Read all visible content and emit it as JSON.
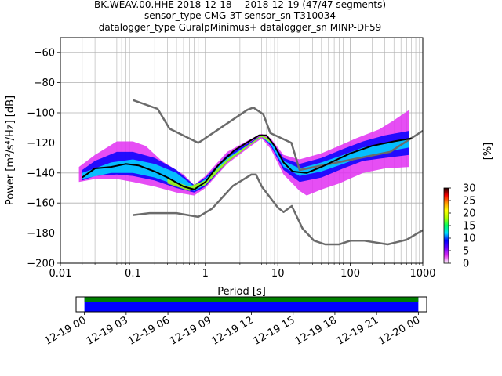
{
  "chart_data": [
    {
      "type": "heatmap",
      "title_lines": [
        "BK.WEAV.00.HHE   2018-12-18 -- 2018-12-19  (47/47 segments)",
        "sensor_type CMG-3T sensor_sn T310034",
        "datalogger_type GuralpMinimus+ datalogger_sn MINP-DF59"
      ],
      "xlabel": "Period [s]",
      "ylabel": "Power [m²/s⁴/Hz] [dB]",
      "xscale": "log",
      "xlim": [
        0.01,
        1000
      ],
      "ylim": [
        -200,
        -50
      ],
      "xticks": [
        {
          "value": 0.01,
          "label": "0.01"
        },
        {
          "value": 0.1,
          "label": "0.1"
        },
        {
          "value": 1,
          "label": "1"
        },
        {
          "value": 10,
          "label": "10"
        },
        {
          "value": 100,
          "label": "100"
        },
        {
          "value": 1000,
          "label": "1000"
        }
      ],
      "yticks": [
        {
          "value": -200,
          "label": "−200"
        },
        {
          "value": -180,
          "label": "−180"
        },
        {
          "value": -160,
          "label": "−160"
        },
        {
          "value": -140,
          "label": "−140"
        },
        {
          "value": -120,
          "label": "−120"
        },
        {
          "value": -100,
          "label": "−100"
        },
        {
          "value": -80,
          "label": "−80"
        },
        {
          "value": -60,
          "label": "−60"
        }
      ],
      "grid": true,
      "colorbar": {
        "label": "[%]",
        "range": [
          0,
          30
        ],
        "ticks": [
          "0",
          "5",
          "10",
          "15",
          "20",
          "25",
          "30"
        ],
        "colors": [
          "#ffffff",
          "#e22ff2",
          "#6a00ff",
          "#0000ff",
          "#00ddff",
          "#00ff60",
          "#aaff00",
          "#ffff00",
          "#ff9900",
          "#ff0000",
          "#200000"
        ]
      },
      "mode_curve": {
        "name": "mode",
        "color": "#000000",
        "points": [
          [
            0.02,
            -143
          ],
          [
            0.03,
            -137
          ],
          [
            0.05,
            -136
          ],
          [
            0.08,
            -134
          ],
          [
            0.12,
            -135
          ],
          [
            0.2,
            -139
          ],
          [
            0.3,
            -143
          ],
          [
            0.5,
            -149
          ],
          [
            0.7,
            -151
          ],
          [
            1.0,
            -146
          ],
          [
            1.5,
            -135
          ],
          [
            2.5,
            -125
          ],
          [
            4,
            -119
          ],
          [
            5.5,
            -115
          ],
          [
            7,
            -115
          ],
          [
            9,
            -122
          ],
          [
            12,
            -133
          ],
          [
            16,
            -139
          ],
          [
            25,
            -140
          ],
          [
            40,
            -136
          ],
          [
            60,
            -132
          ],
          [
            100,
            -127
          ],
          [
            200,
            -122
          ],
          [
            400,
            -119
          ],
          [
            700,
            -117
          ]
        ]
      },
      "noise_models": [
        {
          "name": "upper",
          "color": "#6b6b6b",
          "points": [
            [
              0.1,
              -91.5
            ],
            [
              0.22,
              -97.4
            ],
            [
              0.32,
              -110.5
            ],
            [
              0.8,
              -120
            ],
            [
              3.8,
              -98
            ],
            [
              4.6,
              -96.5
            ],
            [
              6.3,
              -101
            ],
            [
              7.9,
              -113.5
            ],
            [
              15.4,
              -120
            ],
            [
              20,
              -138
            ],
            [
              354.8,
              -126
            ],
            [
              1000,
              -112
            ]
          ]
        },
        {
          "name": "lower",
          "color": "#6b6b6b",
          "points": [
            [
              0.1,
              -168
            ],
            [
              0.17,
              -166.7
            ],
            [
              0.4,
              -166.7
            ],
            [
              0.8,
              -169.2
            ],
            [
              1.24,
              -163.7
            ],
            [
              2.4,
              -148.6
            ],
            [
              4.3,
              -141.1
            ],
            [
              5,
              -141.1
            ],
            [
              6,
              -149
            ],
            [
              10,
              -163
            ],
            [
              12,
              -166
            ],
            [
              15.6,
              -162
            ],
            [
              21.9,
              -177
            ],
            [
              31.6,
              -185
            ],
            [
              45,
              -187.5
            ],
            [
              70,
              -187.5
            ],
            [
              101,
              -185
            ],
            [
              154,
              -185
            ],
            [
              328,
              -187.5
            ],
            [
              600,
              -184.4
            ],
            [
              1000,
              -178
            ]
          ]
        }
      ],
      "density_bands": [
        {
          "level": 0.06,
          "upper": [
            [
              0.018,
              -136
            ],
            [
              0.03,
              -128
            ],
            [
              0.06,
              -119
            ],
            [
              0.1,
              -119
            ],
            [
              0.15,
              -122
            ],
            [
              0.25,
              -132
            ],
            [
              0.5,
              -141
            ],
            [
              0.7,
              -148
            ],
            [
              1.0,
              -142
            ],
            [
              2,
              -126
            ],
            [
              4,
              -118
            ],
            [
              6,
              -114
            ],
            [
              8,
              -117
            ],
            [
              12,
              -128
            ],
            [
              20,
              -131
            ],
            [
              40,
              -127
            ],
            [
              70,
              -122
            ],
            [
              120,
              -117
            ],
            [
              250,
              -111
            ],
            [
              400,
              -105
            ],
            [
              650,
              -98
            ]
          ],
          "lower": [
            [
              0.018,
              -146
            ],
            [
              0.03,
              -144
            ],
            [
              0.06,
              -144
            ],
            [
              0.1,
              -146
            ],
            [
              0.2,
              -149
            ],
            [
              0.4,
              -153
            ],
            [
              0.7,
              -155
            ],
            [
              1.0,
              -150
            ],
            [
              2,
              -134
            ],
            [
              4,
              -123
            ],
            [
              6,
              -117
            ],
            [
              8,
              -124
            ],
            [
              12,
              -141
            ],
            [
              20,
              -152
            ],
            [
              25,
              -155
            ],
            [
              40,
              -151
            ],
            [
              70,
              -147
            ],
            [
              150,
              -140
            ],
            [
              300,
              -137
            ],
            [
              650,
              -136
            ]
          ]
        },
        {
          "level": 0.3,
          "upper": [
            [
              0.02,
              -138
            ],
            [
              0.03,
              -132
            ],
            [
              0.06,
              -126
            ],
            [
              0.1,
              -126
            ],
            [
              0.2,
              -130
            ],
            [
              0.4,
              -138
            ],
            [
              0.7,
              -148
            ],
            [
              1.0,
              -143
            ],
            [
              2,
              -128
            ],
            [
              4,
              -120
            ],
            [
              6,
              -115
            ],
            [
              8,
              -118
            ],
            [
              12,
              -130
            ],
            [
              20,
              -134
            ],
            [
              40,
              -130
            ],
            [
              80,
              -124
            ],
            [
              150,
              -119
            ],
            [
              300,
              -115
            ],
            [
              650,
              -112
            ]
          ],
          "lower": [
            [
              0.02,
              -145
            ],
            [
              0.03,
              -142
            ],
            [
              0.06,
              -141
            ],
            [
              0.1,
              -142
            ],
            [
              0.2,
              -145
            ],
            [
              0.4,
              -150
            ],
            [
              0.7,
              -153
            ],
            [
              1.0,
              -149
            ],
            [
              2,
              -133
            ],
            [
              4,
              -122
            ],
            [
              6,
              -116
            ],
            [
              8,
              -122
            ],
            [
              12,
              -138
            ],
            [
              20,
              -146
            ],
            [
              40,
              -143
            ],
            [
              80,
              -137
            ],
            [
              150,
              -132
            ],
            [
              300,
              -130
            ],
            [
              650,
              -128
            ]
          ]
        },
        {
          "level": 0.55,
          "upper": [
            [
              0.02,
              -140
            ],
            [
              0.05,
              -133
            ],
            [
              0.1,
              -131
            ],
            [
              0.2,
              -134
            ],
            [
              0.4,
              -140
            ],
            [
              0.7,
              -149
            ],
            [
              1.0,
              -144
            ],
            [
              2,
              -130
            ],
            [
              4,
              -121
            ],
            [
              6,
              -115
            ],
            [
              8,
              -119
            ],
            [
              12,
              -132
            ],
            [
              20,
              -137
            ],
            [
              40,
              -133
            ],
            [
              80,
              -128
            ],
            [
              150,
              -123
            ],
            [
              650,
              -117
            ]
          ],
          "lower": [
            [
              0.02,
              -144
            ],
            [
              0.05,
              -140
            ],
            [
              0.1,
              -140
            ],
            [
              0.2,
              -143
            ],
            [
              0.4,
              -148
            ],
            [
              0.7,
              -152
            ],
            [
              1.0,
              -148
            ],
            [
              2,
              -132
            ],
            [
              4,
              -122
            ],
            [
              6,
              -116
            ],
            [
              8,
              -121
            ],
            [
              12,
              -136
            ],
            [
              20,
              -142
            ],
            [
              40,
              -139
            ],
            [
              80,
              -134
            ],
            [
              150,
              -129
            ],
            [
              650,
              -123
            ]
          ]
        },
        {
          "level": 0.8,
          "upper": [
            [
              0.3,
              -144
            ],
            [
              0.6,
              -149
            ],
            [
              1.0,
              -145
            ],
            [
              2,
              -131
            ],
            [
              4,
              -121
            ],
            [
              6,
              -115
            ],
            [
              8,
              -118
            ]
          ],
          "lower": [
            [
              0.3,
              -147
            ],
            [
              0.6,
              -152
            ],
            [
              1.0,
              -148
            ],
            [
              2,
              -133
            ],
            [
              4,
              -122
            ],
            [
              6,
              -116
            ],
            [
              8,
              -120
            ]
          ]
        }
      ]
    },
    {
      "type": "timeline",
      "xtick_labels": [
        "12-19 00",
        "12-19 03",
        "12-19 06",
        "12-19 09",
        "12-19 12",
        "12-19 15",
        "12-19 18",
        "12-19 21",
        "12-20 00"
      ],
      "xlim_hours": [
        -0.6,
        24.6
      ],
      "coverage_hours": [
        0,
        24
      ],
      "colors": {
        "data": "#008000",
        "used": "#0000ff"
      }
    }
  ]
}
